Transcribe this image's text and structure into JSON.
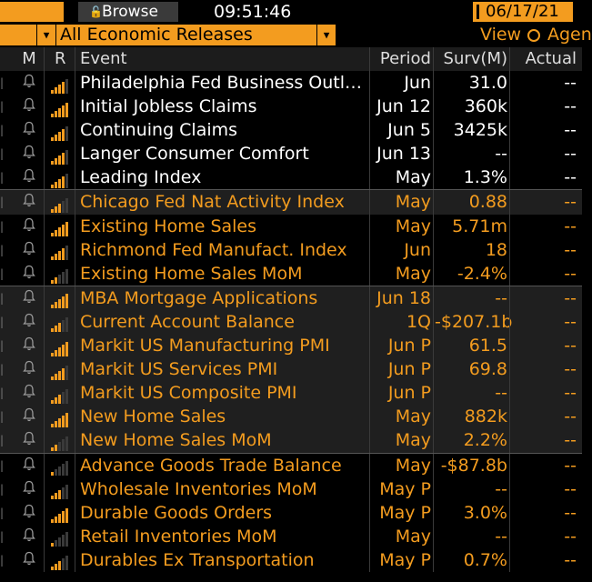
{
  "toolbar": {
    "browse_icon": "unlock-icon",
    "browse_label": "Browse",
    "time": "09:51:46",
    "date": "06/17/21"
  },
  "filter": {
    "selected": "All Economic Releases",
    "view_label": "View",
    "view_option": "Agen"
  },
  "table": {
    "headers": {
      "m": "M",
      "r": "R",
      "event": "Event",
      "period": "Period",
      "surv": "Surv(M)",
      "actual": "Actual"
    },
    "rows": [
      {
        "event": "Philadelphia Fed Business Outl…",
        "period": "Jun",
        "surv": "31.0",
        "actual": "--",
        "color": "white",
        "rel": 4
      },
      {
        "event": "Initial Jobless Claims",
        "period": "Jun 12",
        "surv": "360k",
        "actual": "--",
        "color": "white",
        "rel": 5
      },
      {
        "event": "Continuing Claims",
        "period": "Jun 5",
        "surv": "3425k",
        "actual": "--",
        "color": "white",
        "rel": 4
      },
      {
        "event": "Langer Consumer Comfort",
        "period": "Jun 13",
        "surv": "--",
        "actual": "--",
        "color": "white",
        "rel": 4
      },
      {
        "event": "Leading Index",
        "period": "May",
        "surv": "1.3%",
        "actual": "--",
        "color": "white",
        "rel": 4
      },
      {
        "event": "Chicago Fed Nat Activity Index",
        "period": "May",
        "surv": "0.88",
        "actual": "--",
        "color": "orange",
        "rel": 3
      },
      {
        "event": "Existing Home Sales",
        "period": "May",
        "surv": "5.71m",
        "actual": "--",
        "color": "orange",
        "rel": 5
      },
      {
        "event": "Richmond Fed Manufact. Index",
        "period": "Jun",
        "surv": "18",
        "actual": "--",
        "color": "orange",
        "rel": 4
      },
      {
        "event": "Existing Home Sales MoM",
        "period": "May",
        "surv": "-2.4%",
        "actual": "--",
        "color": "orange",
        "rel": 2
      },
      {
        "event": "MBA Mortgage Applications",
        "period": "Jun 18",
        "surv": "--",
        "actual": "--",
        "color": "orange",
        "rel": 5
      },
      {
        "event": "Current Account Balance",
        "period": "1Q",
        "surv": "-$207.1b",
        "actual": "--",
        "color": "orange",
        "rel": 3
      },
      {
        "event": "Markit US Manufacturing PMI",
        "period": "Jun P",
        "surv": "61.5",
        "actual": "--",
        "color": "orange",
        "rel": 5
      },
      {
        "event": "Markit US Services PMI",
        "period": "Jun P",
        "surv": "69.8",
        "actual": "--",
        "color": "orange",
        "rel": 4
      },
      {
        "event": "Markit US Composite PMI",
        "period": "Jun P",
        "surv": "--",
        "actual": "--",
        "color": "orange",
        "rel": 3
      },
      {
        "event": "New Home Sales",
        "period": "May",
        "surv": "882k",
        "actual": "--",
        "color": "orange",
        "rel": 5
      },
      {
        "event": "New Home Sales MoM",
        "period": "May",
        "surv": "2.2%",
        "actual": "--",
        "color": "orange",
        "rel": 2
      },
      {
        "event": "Advance Goods Trade Balance",
        "period": "May",
        "surv": "-$87.8b",
        "actual": "--",
        "color": "orange",
        "rel": 1
      },
      {
        "event": "Wholesale Inventories MoM",
        "period": "May P",
        "surv": "--",
        "actual": "--",
        "color": "orange",
        "rel": 3
      },
      {
        "event": "Durable Goods Orders",
        "period": "May P",
        "surv": "3.0%",
        "actual": "--",
        "color": "orange",
        "rel": 5
      },
      {
        "event": "Retail Inventories MoM",
        "period": "May",
        "surv": "--",
        "actual": "--",
        "color": "orange",
        "rel": 1
      },
      {
        "event": "Durables Ex Transportation",
        "period": "May P",
        "surv": "0.7%",
        "actual": "--",
        "color": "orange",
        "rel": 3
      }
    ]
  },
  "colors": {
    "accent": "#f39c1f",
    "row_alt": "#1f1f1f"
  }
}
